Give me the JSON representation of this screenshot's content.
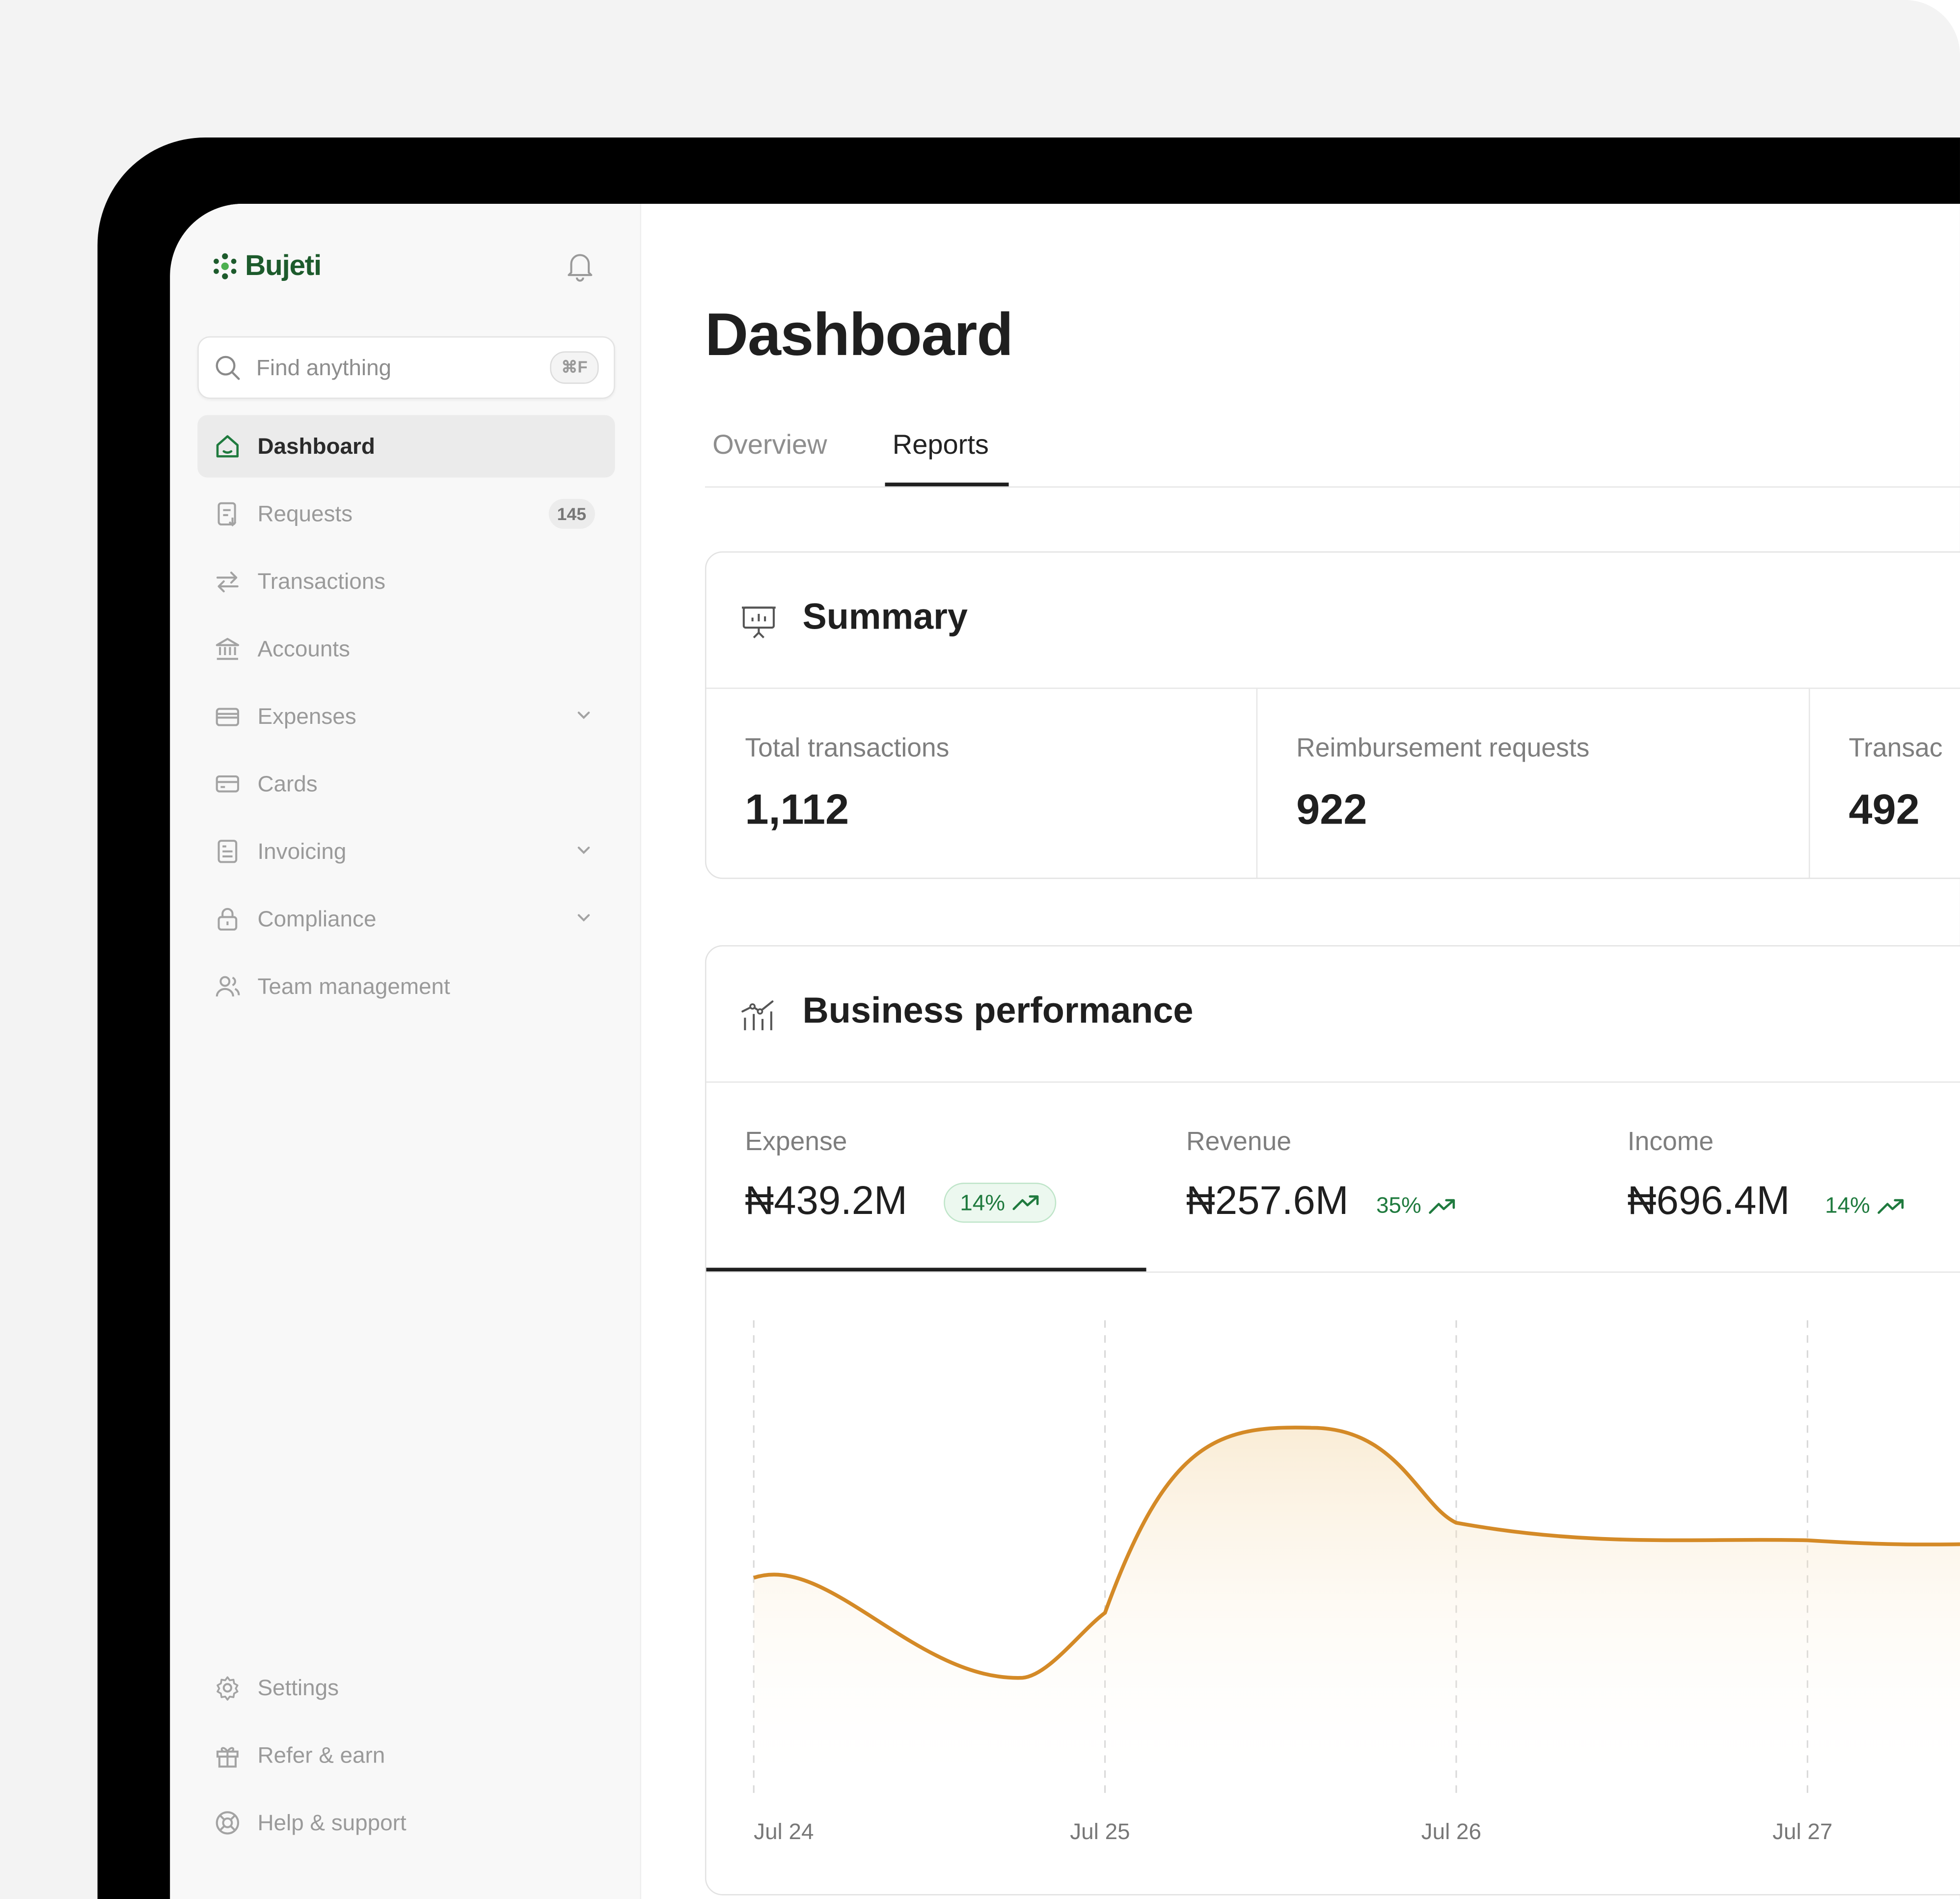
{
  "app": {
    "brand": "Bujeti",
    "brand_color": "#1d5b2c",
    "accent_color": "#d48a27",
    "positive_color": "#1f7a3e"
  },
  "sidebar": {
    "search": {
      "placeholder": "Find anything",
      "shortcut": "⌘F"
    },
    "items": [
      {
        "label": "Dashboard",
        "icon": "home-icon",
        "active": true
      },
      {
        "label": "Requests",
        "icon": "receipt-icon",
        "badge": "145"
      },
      {
        "label": "Transactions",
        "icon": "swap-arrows-icon"
      },
      {
        "label": "Accounts",
        "icon": "bank-icon"
      },
      {
        "label": "Expenses",
        "icon": "wallet-icon",
        "expandable": true
      },
      {
        "label": "Cards",
        "icon": "credit-card-icon"
      },
      {
        "label": "Invoicing",
        "icon": "invoice-icon",
        "expandable": true
      },
      {
        "label": "Compliance",
        "icon": "lock-icon",
        "expandable": true
      },
      {
        "label": "Team management",
        "icon": "users-icon"
      }
    ],
    "footer_items": [
      {
        "label": "Settings",
        "icon": "gear-icon"
      },
      {
        "label": "Refer & earn",
        "icon": "gift-icon"
      },
      {
        "label": "Help & support",
        "icon": "lifebuoy-icon"
      }
    ]
  },
  "main": {
    "title": "Dashboard",
    "tabs": [
      {
        "label": "Overview",
        "active": false
      },
      {
        "label": "Reports",
        "active": true
      }
    ],
    "summary": {
      "title": "Summary",
      "stats": [
        {
          "label": "Total transactions",
          "value": "1,112"
        },
        {
          "label": "Reimbursement requests",
          "value": "922"
        },
        {
          "label": "Transac",
          "value": "492"
        }
      ]
    },
    "performance": {
      "title": "Business performance",
      "metrics": [
        {
          "label": "Expense",
          "value": "₦439.2M",
          "change": "14%",
          "selected": true
        },
        {
          "label": "Revenue",
          "value": "₦257.6M",
          "change": "35%"
        },
        {
          "label": "Income",
          "value": "₦696.4M",
          "change": "14%"
        }
      ]
    }
  },
  "chart_data": {
    "type": "area",
    "x": [
      "Jul 24",
      "Jul 25",
      "Jul 26",
      "Jul 27"
    ],
    "series": [
      {
        "values": [
          0.44,
          0.37,
          0.58,
          0.515
        ]
      }
    ],
    "grid": "vertical dashed",
    "color": "#d48a27"
  }
}
